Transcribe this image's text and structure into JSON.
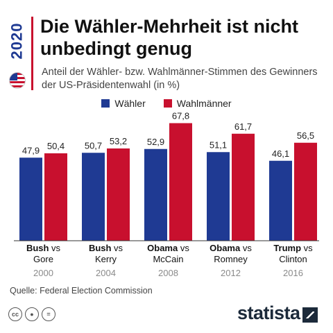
{
  "header": {
    "side_year": "2020",
    "title": "Die Wähler-Mehrheit ist nicht unbedingt genug",
    "subtitle": "Anteil der Wähler- bzw. Wahlmänner-Stimmen des Gewinners der US-Präsidentenwahl (in %)"
  },
  "legend": [
    {
      "label": "Wähler",
      "color": "#1f3a93"
    },
    {
      "label": "Wahlmänner",
      "color": "#c8102e"
    }
  ],
  "chart_data": {
    "type": "bar",
    "categories": [
      {
        "winner": "Bush",
        "vs": "vs",
        "loser": "Gore",
        "year": "2000"
      },
      {
        "winner": "Bush",
        "vs": "vs",
        "loser": "Kerry",
        "year": "2004"
      },
      {
        "winner": "Obama",
        "vs": "vs",
        "loser": "McCain",
        "year": "2008"
      },
      {
        "winner": "Obama",
        "vs": "vs",
        "loser": "Romney",
        "year": "2012"
      },
      {
        "winner": "Trump",
        "vs": "vs",
        "loser": "Clinton",
        "year": "2016"
      }
    ],
    "series": [
      {
        "name": "Wähler",
        "color": "#1f3a93",
        "values": [
          47.9,
          50.7,
          52.9,
          51.1,
          46.1
        ],
        "labels": [
          "47,9",
          "50,7",
          "52,9",
          "51,1",
          "46,1"
        ]
      },
      {
        "name": "Wahlmänner",
        "color": "#c8102e",
        "values": [
          50.4,
          53.2,
          67.8,
          61.7,
          56.5
        ],
        "labels": [
          "50,4",
          "53,2",
          "67,8",
          "61,7",
          "56,5"
        ]
      }
    ],
    "ylim": [
      0,
      70
    ],
    "grid": false
  },
  "footer": {
    "source": "Quelle: Federal Election Commission",
    "brand": "statista",
    "license_icons": [
      "cc-icon",
      "attribution-icon",
      "no-derivatives-icon"
    ]
  }
}
